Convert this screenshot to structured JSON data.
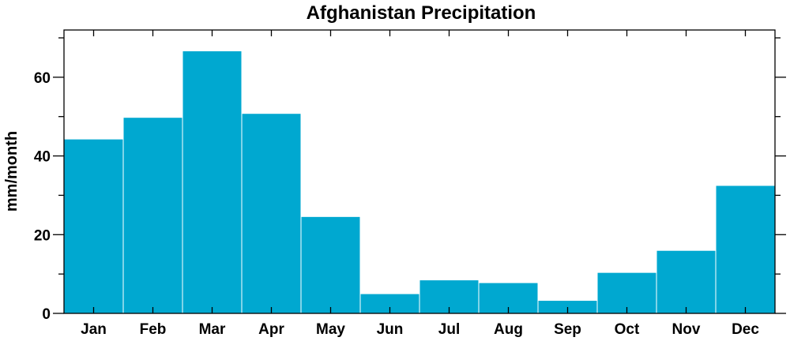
{
  "chart_data": {
    "type": "bar",
    "title": "Afghanistan Precipitation",
    "xlabel": "",
    "ylabel": "mm/month",
    "categories": [
      "Jan",
      "Feb",
      "Mar",
      "Apr",
      "May",
      "Jun",
      "Jul",
      "Aug",
      "Sep",
      "Oct",
      "Nov",
      "Dec"
    ],
    "values": [
      44.3,
      49.8,
      66.7,
      50.8,
      24.6,
      5.0,
      8.5,
      7.8,
      3.3,
      10.4,
      16.0,
      32.5
    ],
    "ylim": [
      0,
      72
    ],
    "yticks": [
      0,
      20,
      40,
      60
    ],
    "y_minor_step": 10,
    "bar_color": "#00a8d0",
    "grid": false,
    "legend": "none"
  }
}
